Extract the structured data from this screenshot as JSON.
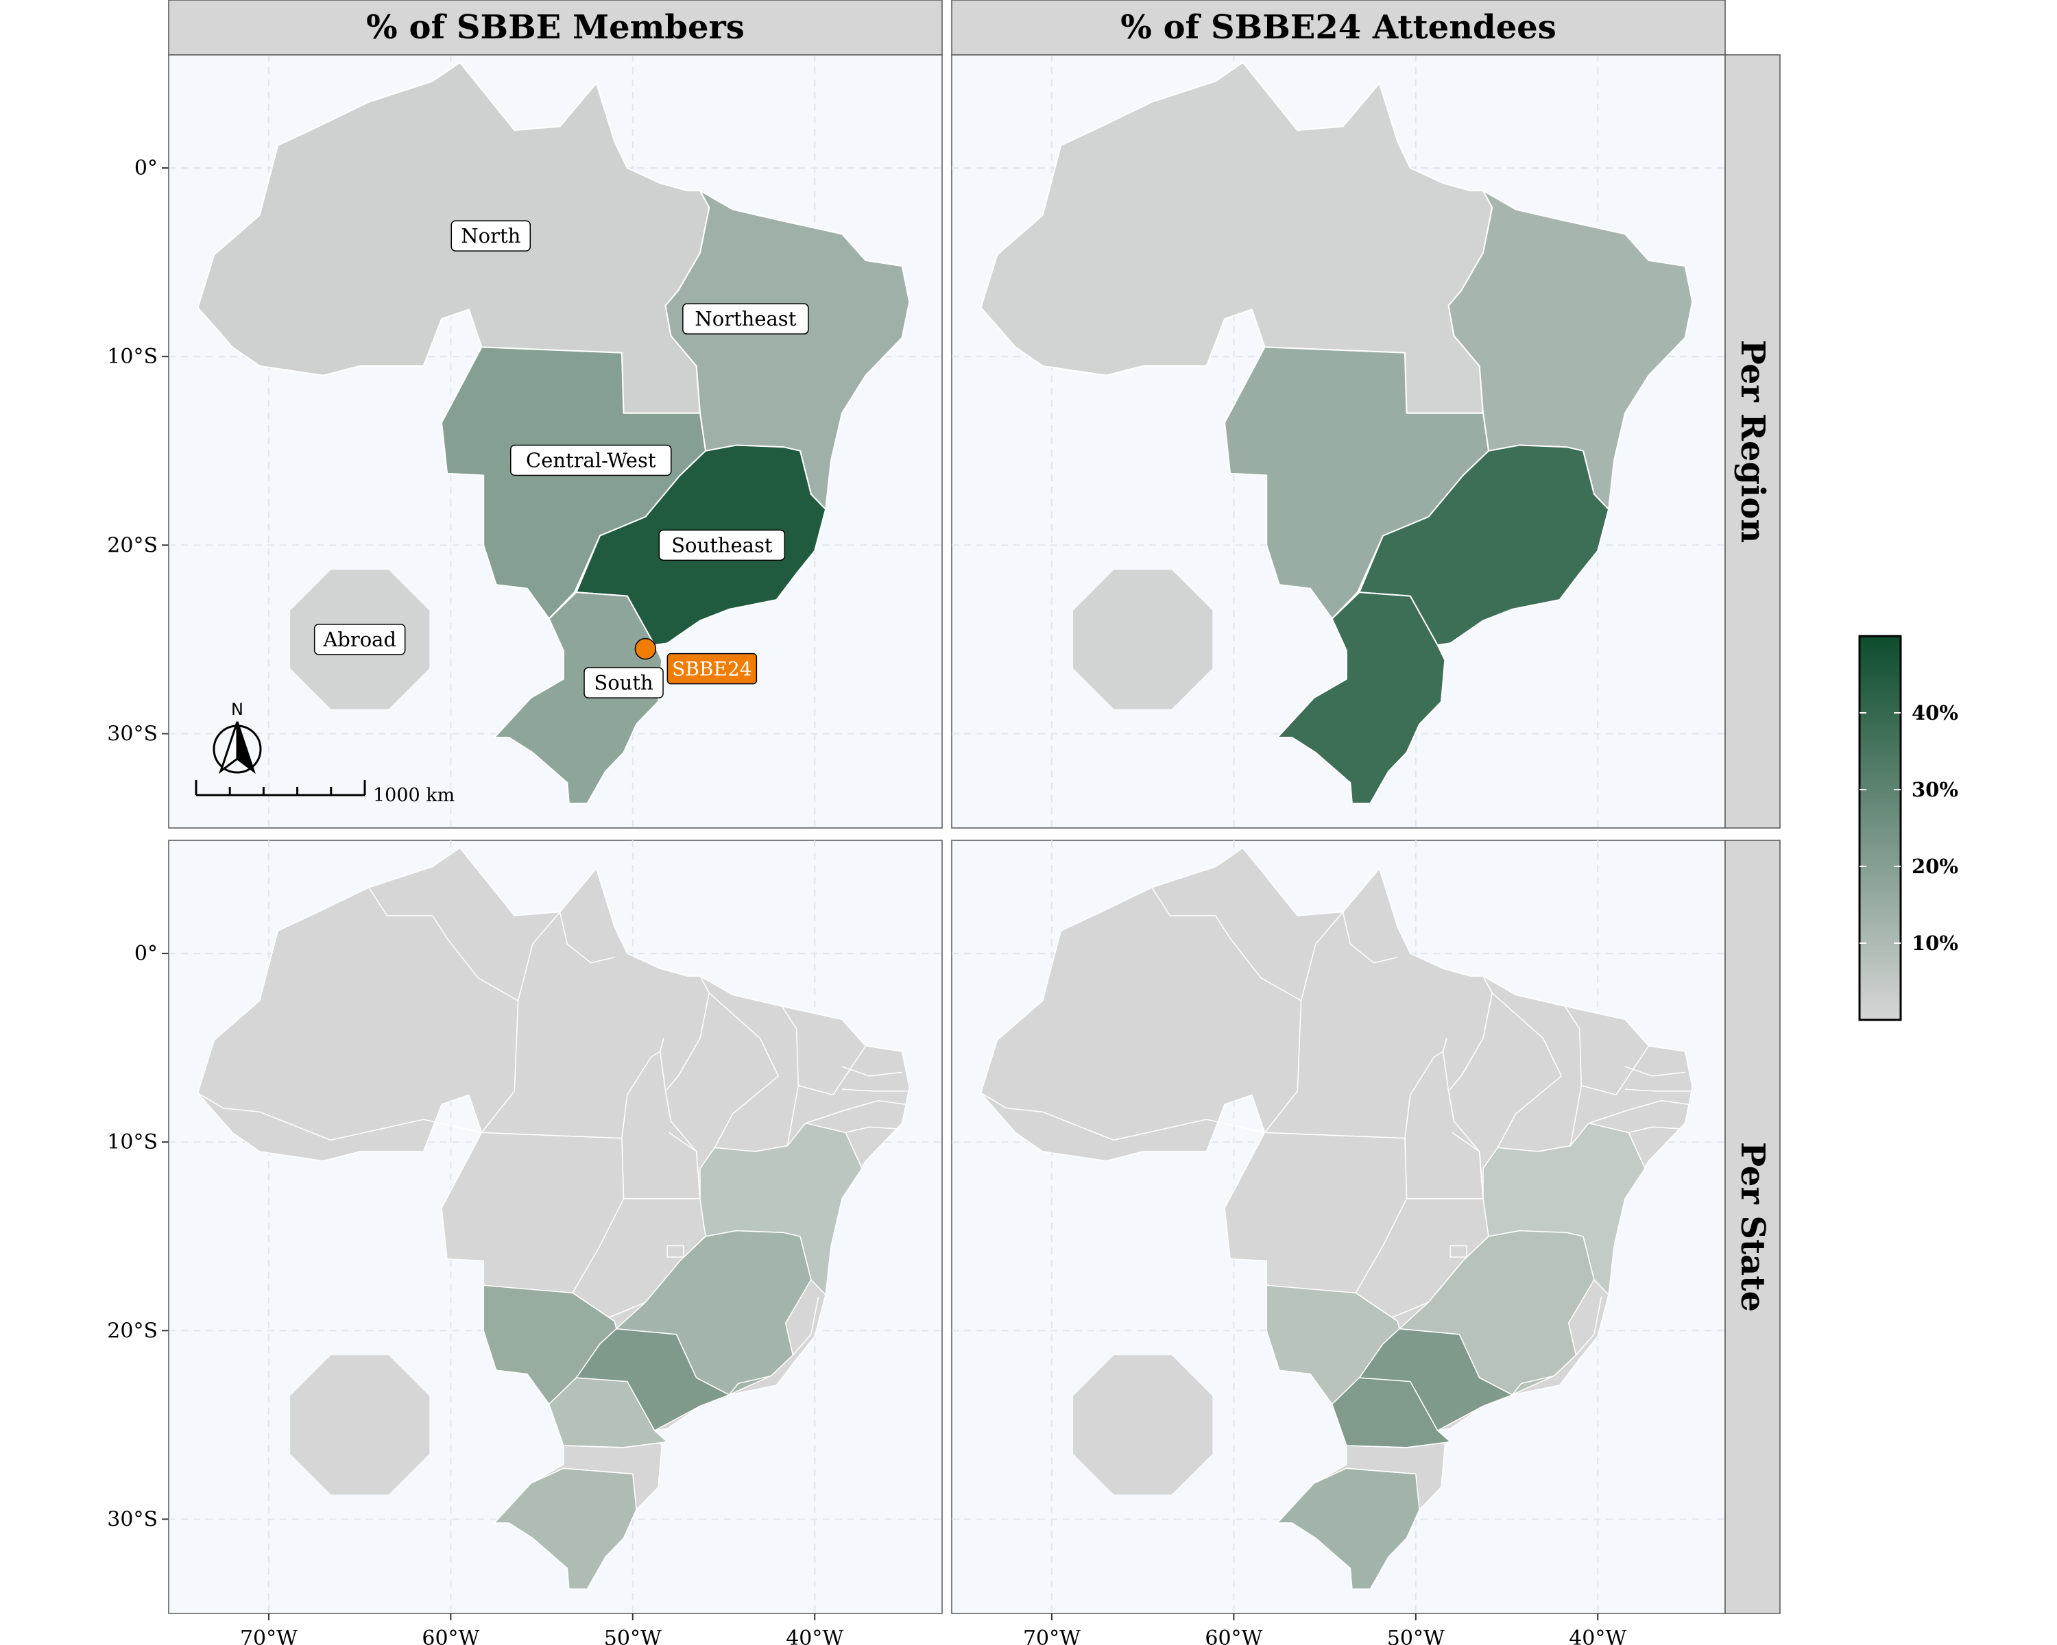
{
  "figure": {
    "columns": [
      "% of SBBE Members",
      "% of SBBE24 Attendees"
    ],
    "rows": [
      "Per Region",
      "Per State"
    ]
  },
  "axes": {
    "x_ticks": [
      "70°W",
      "60°W",
      "50°W",
      "40°W"
    ],
    "x_values": [
      -70,
      -60,
      -50,
      -40
    ],
    "y_ticks": [
      "0°",
      "10°S",
      "20°S",
      "30°S"
    ],
    "y_values": [
      0,
      -10,
      -20,
      -30
    ],
    "lon_range": [
      -75.5,
      -33
    ],
    "lat_range": [
      -35,
      6
    ]
  },
  "map_labels": {
    "north": "North",
    "northeast": "Northeast",
    "central_west": "Central-West",
    "southeast": "Southeast",
    "south": "South",
    "abroad": "Abroad",
    "venue": "SBBE24"
  },
  "map_elements": {
    "north_arrow_letter": "N",
    "scale_bar_label": "1000 km"
  },
  "legend": {
    "ticks": [
      "10%",
      "20%",
      "30%",
      "40%"
    ],
    "tick_values": [
      10,
      20,
      30,
      40
    ],
    "range": [
      0,
      50
    ],
    "colors": {
      "low": "#d6d6d6",
      "high": "#0d4d2e"
    }
  },
  "colors": {
    "panel_bg": "#f5f9fe",
    "strip_bg": "#d6d6d6",
    "venue_marker": "#f07d00",
    "missing": "#d6d6d6"
  },
  "chart_data": {
    "type": "choropleth",
    "unit": "%",
    "region_values": {
      "members": {
        "North": 2,
        "Northeast": 14,
        "Central-West": 20,
        "Southeast": 45,
        "South": 18,
        "Abroad": 1
      },
      "attendees": {
        "North": 1,
        "Northeast": 12,
        "Central-West": 15,
        "Southeast": 38,
        "South": 38,
        "Abroad": 1
      }
    },
    "state_values_highlighted": {
      "members": {
        "SP": 24,
        "MG": 18,
        "MS": 17,
        "RS": 14,
        "PR": 12,
        "BA": 8
      },
      "attendees": {
        "PR": 22,
        "SP": 23,
        "RS": 16,
        "MS": 10,
        "MG": 10,
        "BA": 6
      }
    },
    "venue": {
      "label": "SBBE24",
      "lon": -49.3,
      "lat": -25.5
    }
  }
}
